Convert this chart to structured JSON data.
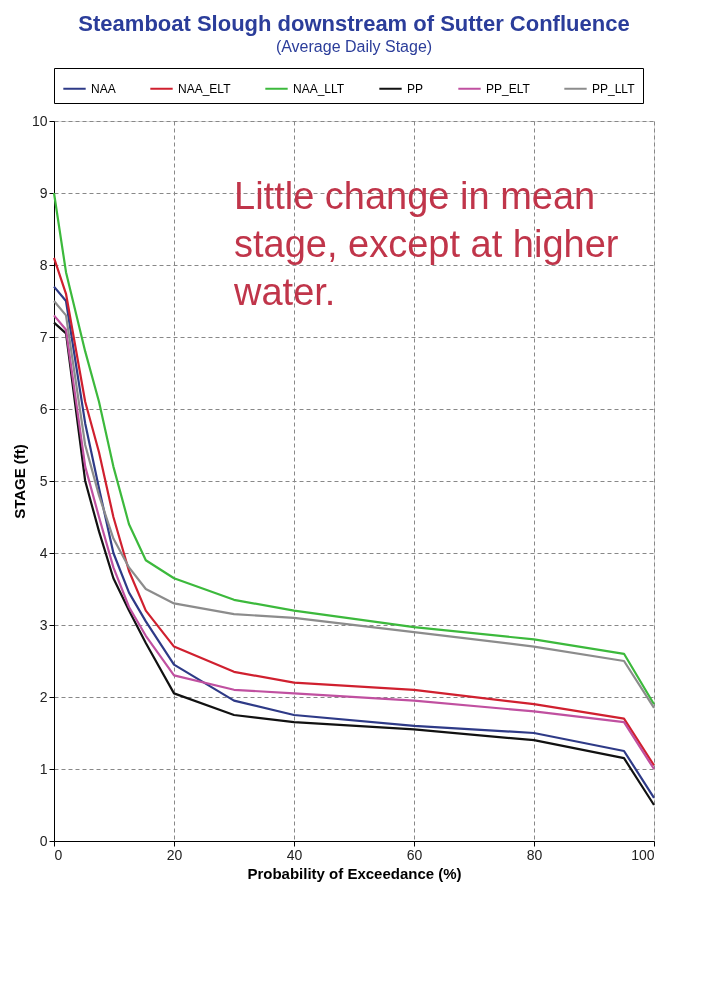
{
  "chart_data": {
    "type": "line",
    "title": "Steamboat Slough downstream of Sutter Confluence",
    "subtitle": "(Average Daily Stage)",
    "xlabel": "Probability of Exceedance (%)",
    "ylabel": "STAGE (ft)",
    "x": [
      0,
      2,
      5.2,
      7.5,
      9.9,
      12.5,
      15.3,
      20,
      30,
      40,
      60,
      80,
      95,
      100
    ],
    "series": [
      {
        "name": "NAA",
        "color": "#2e3a87",
        "values": [
          7.7,
          7.5,
          5.8,
          4.9,
          4.0,
          3.45,
          3.05,
          2.45,
          1.95,
          1.75,
          1.6,
          1.5,
          1.25,
          0.6
        ]
      },
      {
        "name": "NAA_ELT",
        "color": "#d0202f",
        "values": [
          8.1,
          7.6,
          6.1,
          5.4,
          4.5,
          3.75,
          3.2,
          2.7,
          2.35,
          2.2,
          2.1,
          1.9,
          1.7,
          1.05
        ]
      },
      {
        "name": "NAA_LLT",
        "color": "#3cb93c",
        "values": [
          9.0,
          7.9,
          6.8,
          6.1,
          5.2,
          4.4,
          3.9,
          3.65,
          3.35,
          3.2,
          2.97,
          2.8,
          2.6,
          1.9
        ]
      },
      {
        "name": "PP",
        "color": "#111111",
        "values": [
          7.2,
          7.05,
          5.0,
          4.3,
          3.65,
          3.2,
          2.75,
          2.05,
          1.75,
          1.65,
          1.55,
          1.4,
          1.15,
          0.5
        ]
      },
      {
        "name": "PP_ELT",
        "color": "#c050a0",
        "values": [
          7.3,
          7.1,
          5.2,
          4.5,
          3.8,
          3.25,
          2.85,
          2.3,
          2.1,
          2.05,
          1.95,
          1.8,
          1.65,
          1.0
        ]
      },
      {
        "name": "PP_LLT",
        "color": "#8c8c8c",
        "values": [
          7.5,
          7.3,
          5.5,
          4.8,
          4.2,
          3.8,
          3.5,
          3.3,
          3.15,
          3.1,
          2.9,
          2.7,
          2.5,
          1.85
        ]
      }
    ],
    "xlim": [
      0,
      100
    ],
    "xticks": [
      0,
      20,
      40,
      60,
      80,
      100
    ],
    "ylim": [
      0,
      10
    ],
    "yticks": [
      0,
      1,
      2,
      3,
      4,
      5,
      6,
      7,
      8,
      9,
      10
    ],
    "grid": true,
    "legend": "top",
    "marker": "none",
    "line_style": "solid",
    "annotations": [
      "Little change in mean stage, except at higher water."
    ]
  }
}
